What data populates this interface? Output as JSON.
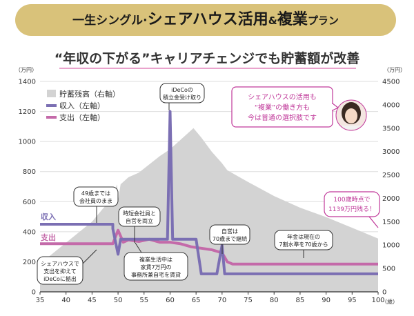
{
  "header": {
    "banner_part1": "一生シングル·",
    "banner_part2": "シェアハウス活用",
    "banner_part3": "&",
    "banner_part4": "複業",
    "banner_part5": "プラン",
    "subtitle": "“年収の下がる”キャリアチェンジでも貯蓄額が改善"
  },
  "colors": {
    "banner": "#d9c27a",
    "savings": "#d3d3d3",
    "income": "#7b6fb3",
    "expense": "#c46aa9",
    "speech_pink": "#c0399a"
  },
  "chart_data": {
    "type": "line",
    "y_left_unit": "（万円）",
    "y_right_unit": "（万円）",
    "x_unit": "（歳）",
    "xlim": [
      35,
      100
    ],
    "ylim_left": [
      0,
      1400
    ],
    "ylim_right": [
      0,
      4500
    ],
    "x_ticks": [
      "35",
      "40",
      "45",
      "50",
      "55",
      "60",
      "65",
      "70",
      "75",
      "80",
      "85",
      "90",
      "95",
      "100"
    ],
    "y_left_ticks": [
      "0",
      "200",
      "400",
      "600",
      "800",
      "1000",
      "1200",
      "1400"
    ],
    "y_right_ticks": [
      "0",
      "500",
      "1000",
      "1500",
      "2000",
      "2500",
      "3000",
      "3500",
      "4000",
      "4500"
    ],
    "legend": [
      "貯蓄残高（右軸）",
      "収入（左軸）",
      "支出（左軸）"
    ],
    "series": [
      {
        "name": "貯蓄残高（右軸）",
        "axis": "right",
        "points": [
          [
            35,
            600
          ],
          [
            40,
            1050
          ],
          [
            45,
            1500
          ],
          [
            48,
            1900
          ],
          [
            49,
            2050
          ],
          [
            49.8,
            2300
          ],
          [
            50,
            1950
          ],
          [
            50.5,
            2300
          ],
          [
            52,
            2450
          ],
          [
            54,
            2550
          ],
          [
            58,
            2900
          ],
          [
            60,
            3050
          ],
          [
            62,
            3250
          ],
          [
            64.5,
            3500
          ],
          [
            66,
            3300
          ],
          [
            68,
            3000
          ],
          [
            70,
            2750
          ],
          [
            71,
            2600
          ],
          [
            75,
            2350
          ],
          [
            80,
            2050
          ],
          [
            85,
            1800
          ],
          [
            90,
            1600
          ],
          [
            95,
            1370
          ],
          [
            100,
            1139
          ]
        ]
      },
      {
        "name": "収入（左軸）",
        "axis": "left",
        "points": [
          [
            35,
            450
          ],
          [
            49,
            450
          ],
          [
            49,
            420
          ],
          [
            50,
            250
          ],
          [
            50.5,
            350
          ],
          [
            59.5,
            350
          ],
          [
            60,
            1200
          ],
          [
            60.5,
            350
          ],
          [
            65,
            350
          ],
          [
            66,
            120
          ],
          [
            69,
            120
          ],
          [
            70,
            310
          ],
          [
            70.5,
            120
          ],
          [
            100,
            120
          ]
        ]
      },
      {
        "name": "支出（左軸）",
        "axis": "left",
        "points": [
          [
            35,
            320
          ],
          [
            49,
            320
          ],
          [
            50,
            410
          ],
          [
            51,
            330
          ],
          [
            52,
            345
          ],
          [
            54,
            335
          ],
          [
            56,
            350
          ],
          [
            58,
            330
          ],
          [
            60,
            330
          ],
          [
            62,
            320
          ],
          [
            64,
            300
          ],
          [
            66,
            290
          ],
          [
            68,
            280
          ],
          [
            70,
            260
          ],
          [
            71,
            200
          ],
          [
            72,
            185
          ],
          [
            100,
            185
          ]
        ]
      }
    ],
    "annotations": {
      "income_label": "収入",
      "expense_label": "支出",
      "ideco_l1": "iDeCoの",
      "ideco_l2": "積立金受け取り",
      "until49_l1": "49歳までは",
      "until49_l2": "会社員のまま",
      "parttime_l1": "時短会社員と",
      "parttime_l2": "自営を両立",
      "share_l1": "シェアハウスで",
      "share_l2": "支出を抑えて",
      "share_l3": "iDeCoに拠出",
      "multi_l1": "複業生活中は",
      "multi_l2": "家賃7万円の",
      "multi_l3": "事務所兼自宅を賃貸",
      "self_l1": "自営は",
      "self_l2": "70歳まで継続",
      "pension_l1": "年金は現在の",
      "pension_l2": "7割水準を70歳から",
      "age100_l1": "100歳時点で",
      "age100_l2": "1139万円残る！",
      "speech_l1": "シェアハウスの活用も",
      "speech_l2": "“複業”の働き方も",
      "speech_l3": "今は普通の選択肢です"
    }
  }
}
